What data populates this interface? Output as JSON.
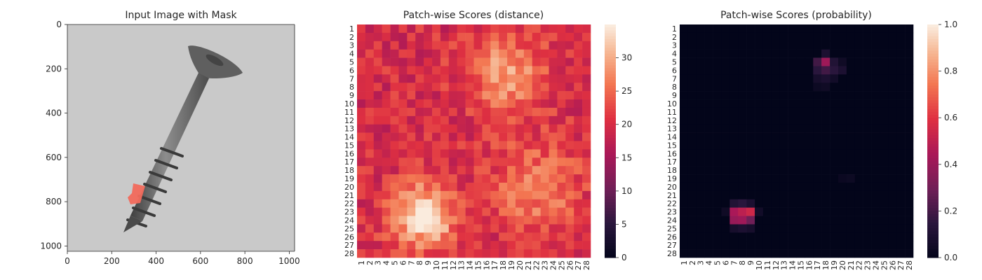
{
  "chart_data": [
    {
      "type": "image",
      "title": "Input Image with Mask",
      "xlim": [
        0,
        1024
      ],
      "ylim": [
        1024,
        0
      ],
      "xticks": [
        0,
        200,
        400,
        600,
        800,
        1000
      ],
      "yticks": [
        0,
        200,
        400,
        600,
        800,
        1000
      ],
      "annotations": [
        "grayscale photo of a screw",
        "red mask region on lower thread"
      ]
    },
    {
      "type": "heatmap",
      "title": "Patch-wise Scores (distance)",
      "rows": 28,
      "cols": 28,
      "row_labels": [
        "1",
        "2",
        "3",
        "4",
        "5",
        "6",
        "7",
        "8",
        "9",
        "10",
        "11",
        "12",
        "13",
        "14",
        "15",
        "16",
        "17",
        "18",
        "19",
        "20",
        "21",
        "22",
        "23",
        "24",
        "25",
        "26",
        "27",
        "28"
      ],
      "col_labels": [
        "1",
        "2",
        "3",
        "4",
        "5",
        "6",
        "7",
        "8",
        "9",
        "10",
        "11",
        "12",
        "13",
        "14",
        "15",
        "16",
        "17",
        "18",
        "19",
        "20",
        "21",
        "22",
        "23",
        "24",
        "25",
        "26",
        "27",
        "28"
      ],
      "colorbar": {
        "min": 0,
        "max": 35,
        "ticks": [
          0,
          5,
          10,
          15,
          20,
          25,
          30
        ]
      },
      "base_value": 20,
      "hotspots": [
        {
          "row": 23.5,
          "col": 8.5,
          "peak": 35,
          "radius": 2.6
        },
        {
          "row": 6.5,
          "col": 18.5,
          "peak": 29,
          "radius": 3.2
        },
        {
          "row": 20.0,
          "col": 22.0,
          "peak": 27,
          "radius": 3.6
        }
      ]
    },
    {
      "type": "heatmap",
      "title": "Patch-wise Scores (probability)",
      "rows": 28,
      "cols": 28,
      "row_labels": [
        "1",
        "2",
        "3",
        "4",
        "5",
        "6",
        "7",
        "8",
        "9",
        "10",
        "11",
        "12",
        "13",
        "14",
        "15",
        "16",
        "17",
        "18",
        "19",
        "20",
        "21",
        "22",
        "23",
        "24",
        "25",
        "26",
        "27",
        "28"
      ],
      "col_labels": [
        "1",
        "2",
        "3",
        "4",
        "5",
        "6",
        "7",
        "8",
        "9",
        "10",
        "11",
        "12",
        "13",
        "14",
        "15",
        "16",
        "17",
        "18",
        "19",
        "20",
        "21",
        "22",
        "23",
        "24",
        "25",
        "26",
        "27",
        "28"
      ],
      "colorbar": {
        "min": 0,
        "max": 1,
        "ticks": [
          "0.0",
          "0.2",
          "0.4",
          "0.6",
          "0.8",
          "1.0"
        ]
      },
      "cells": [
        {
          "row": 22,
          "col": 7,
          "value": 0.12
        },
        {
          "row": 22,
          "col": 8,
          "value": 0.15
        },
        {
          "row": 22,
          "col": 9,
          "value": 0.1
        },
        {
          "row": 23,
          "col": 6,
          "value": 0.05
        },
        {
          "row": 23,
          "col": 7,
          "value": 0.45
        },
        {
          "row": 23,
          "col": 8,
          "value": 0.5
        },
        {
          "row": 23,
          "col": 9,
          "value": 0.55
        },
        {
          "row": 23,
          "col": 10,
          "value": 0.06
        },
        {
          "row": 24,
          "col": 7,
          "value": 0.4
        },
        {
          "row": 24,
          "col": 8,
          "value": 0.42
        },
        {
          "row": 24,
          "col": 9,
          "value": 0.3
        },
        {
          "row": 25,
          "col": 7,
          "value": 0.08
        },
        {
          "row": 25,
          "col": 8,
          "value": 0.1
        },
        {
          "row": 25,
          "col": 9,
          "value": 0.08
        },
        {
          "row": 4,
          "col": 18,
          "value": 0.1
        },
        {
          "row": 5,
          "col": 17,
          "value": 0.2
        },
        {
          "row": 5,
          "col": 18,
          "value": 0.42
        },
        {
          "row": 5,
          "col": 19,
          "value": 0.12
        },
        {
          "row": 5,
          "col": 20,
          "value": 0.05
        },
        {
          "row": 6,
          "col": 17,
          "value": 0.15
        },
        {
          "row": 6,
          "col": 18,
          "value": 0.2
        },
        {
          "row": 6,
          "col": 19,
          "value": 0.15
        },
        {
          "row": 6,
          "col": 20,
          "value": 0.1
        },
        {
          "row": 7,
          "col": 17,
          "value": 0.08
        },
        {
          "row": 7,
          "col": 18,
          "value": 0.1
        },
        {
          "row": 7,
          "col": 19,
          "value": 0.06
        },
        {
          "row": 8,
          "col": 17,
          "value": 0.04
        },
        {
          "row": 8,
          "col": 18,
          "value": 0.05
        },
        {
          "row": 19,
          "col": 20,
          "value": 0.03
        },
        {
          "row": 19,
          "col": 21,
          "value": 0.04
        }
      ]
    }
  ],
  "colors": {
    "background": "#ffffff",
    "axis_text": "#262626",
    "image_background": "#c8c8c8",
    "screw_body": "#6a6a6a",
    "mask": "#f26a5c"
  }
}
